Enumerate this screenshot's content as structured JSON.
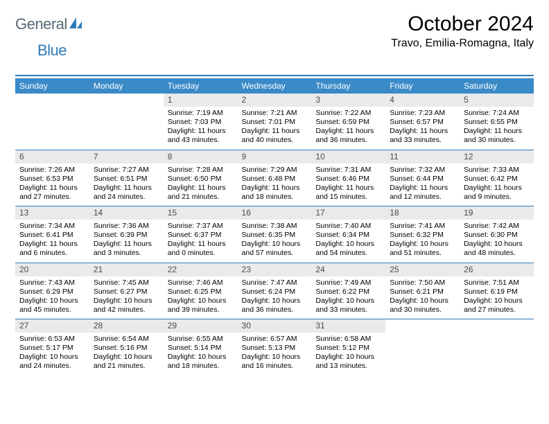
{
  "branding": {
    "logo_general": "General",
    "logo_blue": "Blue",
    "logo_icon_fill": "#2f7ab8"
  },
  "header": {
    "month_title": "October 2024",
    "location": "Travo, Emilia-Romagna, Italy"
  },
  "style": {
    "header_bg": "#3a8ac8",
    "rule_color": "#2f7ab8",
    "daynum_bg": "#e9eaeb",
    "font_family": "Arial",
    "title_fontsize": 30,
    "location_fontsize": 16,
    "weekday_fontsize": 12,
    "body_fontsize": 10.5
  },
  "weekdays": [
    "Sunday",
    "Monday",
    "Tuesday",
    "Wednesday",
    "Thursday",
    "Friday",
    "Saturday"
  ],
  "weeks": [
    [
      {
        "day": "",
        "lines": []
      },
      {
        "day": "",
        "lines": []
      },
      {
        "day": "1",
        "lines": [
          "Sunrise: 7:19 AM",
          "Sunset: 7:03 PM",
          "Daylight: 11 hours and 43 minutes."
        ]
      },
      {
        "day": "2",
        "lines": [
          "Sunrise: 7:21 AM",
          "Sunset: 7:01 PM",
          "Daylight: 11 hours and 40 minutes."
        ]
      },
      {
        "day": "3",
        "lines": [
          "Sunrise: 7:22 AM",
          "Sunset: 6:59 PM",
          "Daylight: 11 hours and 36 minutes."
        ]
      },
      {
        "day": "4",
        "lines": [
          "Sunrise: 7:23 AM",
          "Sunset: 6:57 PM",
          "Daylight: 11 hours and 33 minutes."
        ]
      },
      {
        "day": "5",
        "lines": [
          "Sunrise: 7:24 AM",
          "Sunset: 6:55 PM",
          "Daylight: 11 hours and 30 minutes."
        ]
      }
    ],
    [
      {
        "day": "6",
        "lines": [
          "Sunrise: 7:26 AM",
          "Sunset: 6:53 PM",
          "Daylight: 11 hours and 27 minutes."
        ]
      },
      {
        "day": "7",
        "lines": [
          "Sunrise: 7:27 AM",
          "Sunset: 6:51 PM",
          "Daylight: 11 hours and 24 minutes."
        ]
      },
      {
        "day": "8",
        "lines": [
          "Sunrise: 7:28 AM",
          "Sunset: 6:50 PM",
          "Daylight: 11 hours and 21 minutes."
        ]
      },
      {
        "day": "9",
        "lines": [
          "Sunrise: 7:29 AM",
          "Sunset: 6:48 PM",
          "Daylight: 11 hours and 18 minutes."
        ]
      },
      {
        "day": "10",
        "lines": [
          "Sunrise: 7:31 AM",
          "Sunset: 6:46 PM",
          "Daylight: 11 hours and 15 minutes."
        ]
      },
      {
        "day": "11",
        "lines": [
          "Sunrise: 7:32 AM",
          "Sunset: 6:44 PM",
          "Daylight: 11 hours and 12 minutes."
        ]
      },
      {
        "day": "12",
        "lines": [
          "Sunrise: 7:33 AM",
          "Sunset: 6:42 PM",
          "Daylight: 11 hours and 9 minutes."
        ]
      }
    ],
    [
      {
        "day": "13",
        "lines": [
          "Sunrise: 7:34 AM",
          "Sunset: 6:41 PM",
          "Daylight: 11 hours and 6 minutes."
        ]
      },
      {
        "day": "14",
        "lines": [
          "Sunrise: 7:36 AM",
          "Sunset: 6:39 PM",
          "Daylight: 11 hours and 3 minutes."
        ]
      },
      {
        "day": "15",
        "lines": [
          "Sunrise: 7:37 AM",
          "Sunset: 6:37 PM",
          "Daylight: 11 hours and 0 minutes."
        ]
      },
      {
        "day": "16",
        "lines": [
          "Sunrise: 7:38 AM",
          "Sunset: 6:35 PM",
          "Daylight: 10 hours and 57 minutes."
        ]
      },
      {
        "day": "17",
        "lines": [
          "Sunrise: 7:40 AM",
          "Sunset: 6:34 PM",
          "Daylight: 10 hours and 54 minutes."
        ]
      },
      {
        "day": "18",
        "lines": [
          "Sunrise: 7:41 AM",
          "Sunset: 6:32 PM",
          "Daylight: 10 hours and 51 minutes."
        ]
      },
      {
        "day": "19",
        "lines": [
          "Sunrise: 7:42 AM",
          "Sunset: 6:30 PM",
          "Daylight: 10 hours and 48 minutes."
        ]
      }
    ],
    [
      {
        "day": "20",
        "lines": [
          "Sunrise: 7:43 AM",
          "Sunset: 6:29 PM",
          "Daylight: 10 hours and 45 minutes."
        ]
      },
      {
        "day": "21",
        "lines": [
          "Sunrise: 7:45 AM",
          "Sunset: 6:27 PM",
          "Daylight: 10 hours and 42 minutes."
        ]
      },
      {
        "day": "22",
        "lines": [
          "Sunrise: 7:46 AM",
          "Sunset: 6:25 PM",
          "Daylight: 10 hours and 39 minutes."
        ]
      },
      {
        "day": "23",
        "lines": [
          "Sunrise: 7:47 AM",
          "Sunset: 6:24 PM",
          "Daylight: 10 hours and 36 minutes."
        ]
      },
      {
        "day": "24",
        "lines": [
          "Sunrise: 7:49 AM",
          "Sunset: 6:22 PM",
          "Daylight: 10 hours and 33 minutes."
        ]
      },
      {
        "day": "25",
        "lines": [
          "Sunrise: 7:50 AM",
          "Sunset: 6:21 PM",
          "Daylight: 10 hours and 30 minutes."
        ]
      },
      {
        "day": "26",
        "lines": [
          "Sunrise: 7:51 AM",
          "Sunset: 6:19 PM",
          "Daylight: 10 hours and 27 minutes."
        ]
      }
    ],
    [
      {
        "day": "27",
        "lines": [
          "Sunrise: 6:53 AM",
          "Sunset: 5:17 PM",
          "Daylight: 10 hours and 24 minutes."
        ]
      },
      {
        "day": "28",
        "lines": [
          "Sunrise: 6:54 AM",
          "Sunset: 5:16 PM",
          "Daylight: 10 hours and 21 minutes."
        ]
      },
      {
        "day": "29",
        "lines": [
          "Sunrise: 6:55 AM",
          "Sunset: 5:14 PM",
          "Daylight: 10 hours and 18 minutes."
        ]
      },
      {
        "day": "30",
        "lines": [
          "Sunrise: 6:57 AM",
          "Sunset: 5:13 PM",
          "Daylight: 10 hours and 16 minutes."
        ]
      },
      {
        "day": "31",
        "lines": [
          "Sunrise: 6:58 AM",
          "Sunset: 5:12 PM",
          "Daylight: 10 hours and 13 minutes."
        ]
      },
      {
        "day": "",
        "lines": []
      },
      {
        "day": "",
        "lines": []
      }
    ]
  ]
}
